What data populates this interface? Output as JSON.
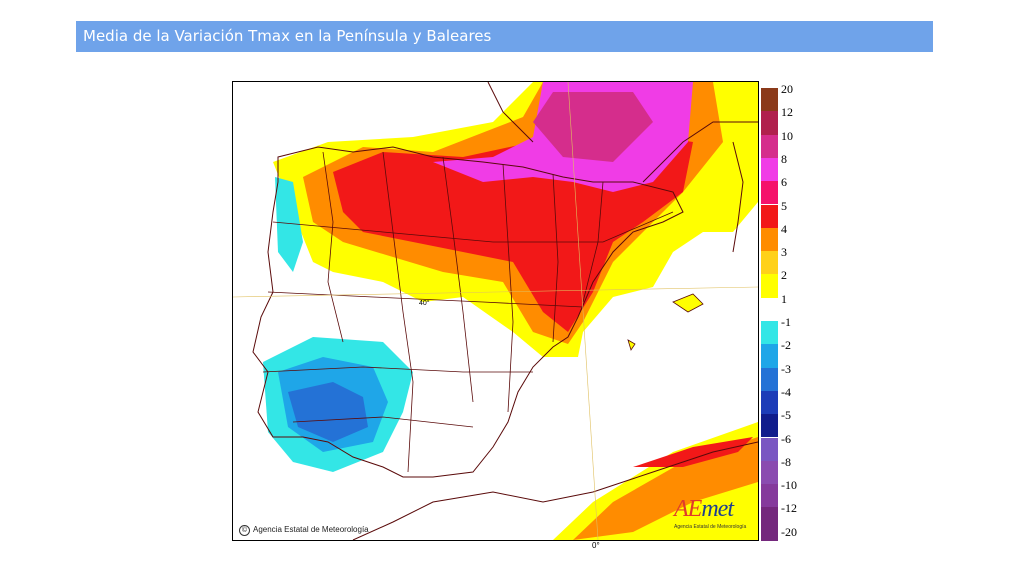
{
  "header": {
    "title": "Media de la Variación Tmax en la Península y Baleares"
  },
  "map": {
    "copyright": "Agencia Estatal de Meteorología",
    "copyright_symbol": "©",
    "lat_label": "40°",
    "lon_label": "0°",
    "logo": {
      "brand_ae": "AE",
      "brand_rest": "met",
      "subtitle": "Agencia Estatal de Meteorología"
    }
  },
  "legend": {
    "items": [
      {
        "label": "20",
        "color": "#8b3a1a"
      },
      {
        "label": "12",
        "color": "#b0204d"
      },
      {
        "label": "10",
        "color": "#d52d8c"
      },
      {
        "label": "8",
        "color": "#f03ce6"
      },
      {
        "label": "6",
        "color": "#f5126b"
      },
      {
        "label": "5",
        "color": "#f21818"
      },
      {
        "label": "4",
        "color": "#ff8c00"
      },
      {
        "label": "3",
        "color": "#ffd11a"
      },
      {
        "label": "2",
        "color": "#ffff00"
      },
      {
        "label": "1",
        "color": "#ffffff"
      },
      {
        "label": "-1",
        "color": "#33e6e6"
      },
      {
        "label": "-2",
        "color": "#1fa6e8"
      },
      {
        "label": "-3",
        "color": "#2472d6"
      },
      {
        "label": "-4",
        "color": "#1c3cb8"
      },
      {
        "label": "-5",
        "color": "#101c8c"
      },
      {
        "label": "-6",
        "color": "#7a57c2"
      },
      {
        "label": "-8",
        "color": "#8a4bb0"
      },
      {
        "label": "-10",
        "color": "#853a9c"
      },
      {
        "label": "-12",
        "color": "#74287d"
      },
      {
        "label": "-20",
        "color": "#74287d"
      }
    ]
  }
}
